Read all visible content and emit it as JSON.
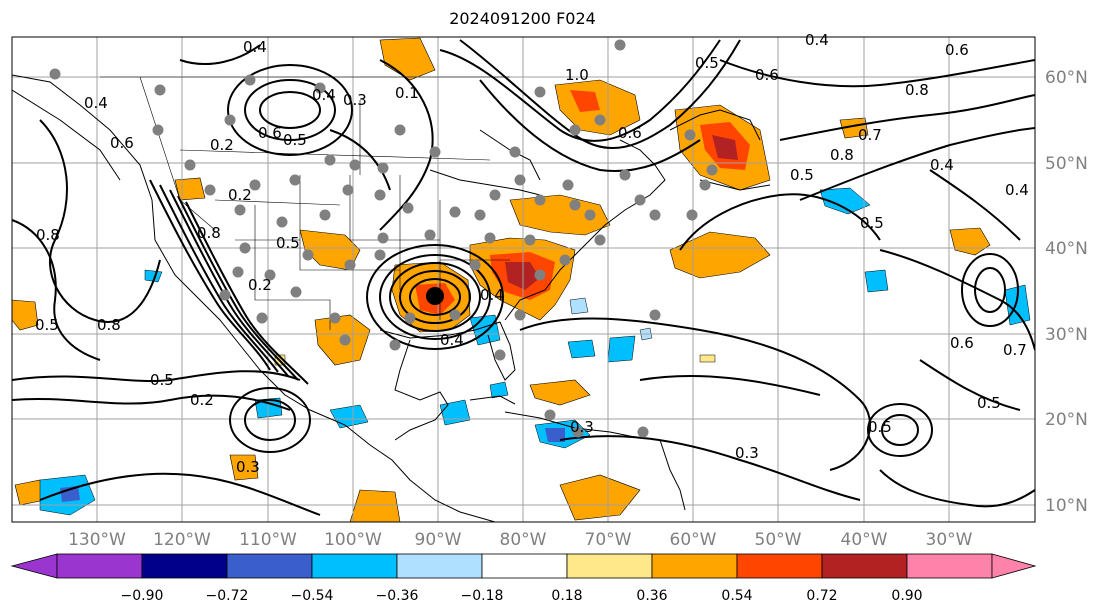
{
  "title": "2024091200 F024",
  "longitude_labels": [
    "130°W",
    "120°W",
    "110°W",
    "100°W",
    "90°W",
    "80°W",
    "70°W",
    "60°W",
    "50°W",
    "40°W",
    "30°W"
  ],
  "latitude_labels": [
    "60°N",
    "50°N",
    "40°N",
    "30°N",
    "20°N",
    "10°N"
  ],
  "colorbar": {
    "ticks": [
      "−0.90",
      "−0.72",
      "−0.54",
      "−0.36",
      "−0.18",
      "0.18",
      "0.36",
      "0.54",
      "0.72",
      "0.90"
    ],
    "colors": [
      "#9a35d0",
      "#00008b",
      "#3a5fcd",
      "#00bfff",
      "#b0e0ff",
      "#ffffff",
      "#ffe88a",
      "#ffa500",
      "#ff4500",
      "#b22222",
      "#ff82ab"
    ]
  },
  "contour_labels": [
    "0.4",
    "0.3",
    "0.1",
    "0.4",
    "0.6",
    "0.5",
    "0.2",
    "0.4",
    "0.8",
    "0.6",
    "0.5",
    "0.8",
    "0.2",
    "0.5",
    "0.8",
    "0.5",
    "0.2",
    "0.3",
    "0.4",
    "0.5",
    "0.6",
    "0.8",
    "0.5",
    "0.7",
    "0.4",
    "0.6",
    "0.4",
    "0.8",
    "0.3",
    "0.5",
    "0.2",
    "0.4",
    "0.5",
    "0.6",
    "1.0",
    "0.7",
    "0.6",
    "0.3",
    "0.5",
    "0.4"
  ],
  "colors": {
    "land_outline": "#000000",
    "grid": "#a0a0a0",
    "label_gray": "#808080",
    "marker": "#808080"
  }
}
